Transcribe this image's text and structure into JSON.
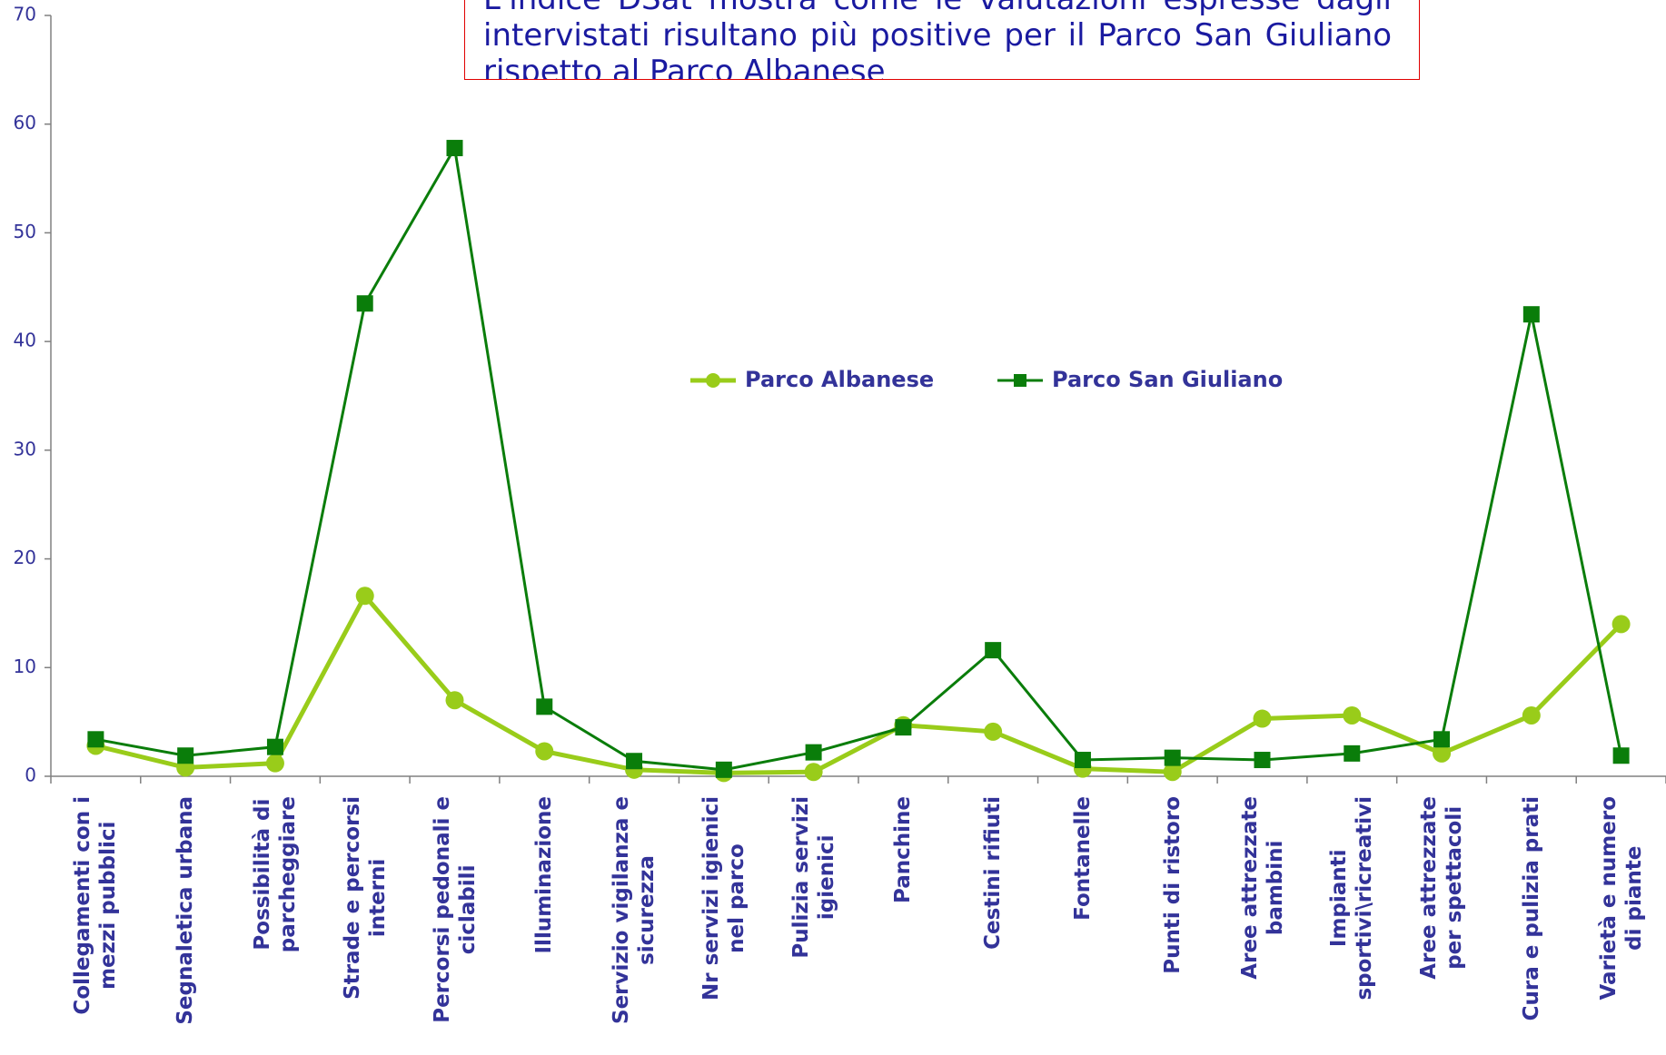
{
  "chart_data": {
    "type": "line",
    "annotation": "L'indice DSat mostra come le valutazioni espresse dagli intervistati risultano più positive per il Parco San Giuliano rispetto al Parco Albanese",
    "categories": [
      "Collegamenti con i\nmezzi pubblici",
      "Segnaletica urbana",
      "Possibilità di\nparcheggiare",
      "Strade e percorsi\ninterni",
      "Percorsi pedonali e\nciclabili",
      "Illuminazione",
      "Servizio vigilanza e\nsicurezza",
      "Nr servizi igienici\nnel parco",
      "Pulizia servizi\nigienici",
      "Panchine",
      "Cestini rifiuti",
      "Fontanelle",
      "Punti di ristoro",
      "Aree attrezzate\nbambini",
      "Impianti\nsportivi\\ricreativi",
      "Aree attrezzate\nper spettacoli",
      "Cura e pulizia prati",
      "Varietà e numero\ndi piante"
    ],
    "series": [
      {
        "name": "Parco Albanese",
        "color": "#99cc1a",
        "marker": "circle",
        "values": [
          2.8,
          0.8,
          1.2,
          16.6,
          7.0,
          2.3,
          0.6,
          0.3,
          0.4,
          4.7,
          4.1,
          0.7,
          0.4,
          5.3,
          5.6,
          2.1,
          5.6,
          14.0
        ]
      },
      {
        "name": "Parco San Giuliano",
        "color": "#0a7d0a",
        "marker": "square",
        "values": [
          3.4,
          1.9,
          2.7,
          43.5,
          57.8,
          6.4,
          1.4,
          0.6,
          2.2,
          4.5,
          11.6,
          1.5,
          1.7,
          1.5,
          2.1,
          3.4,
          42.5,
          1.9
        ]
      }
    ],
    "ylim": [
      0,
      70
    ],
    "yticks": [
      0,
      10,
      20,
      30,
      40,
      50,
      60,
      70
    ]
  }
}
